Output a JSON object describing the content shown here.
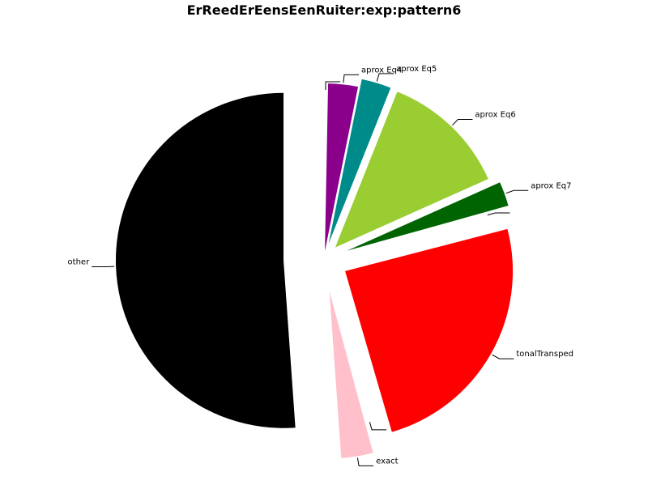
{
  "chart_data": {
    "type": "pie",
    "title": "ErReedErEensEenRuiter:exp:pattern6",
    "slices": [
      {
        "label": "other",
        "value": 50.0,
        "color": "#000000"
      },
      {
        "label": "exact",
        "value": 3.0,
        "color": "#ffc0cb"
      },
      {
        "label": "",
        "value": 0.3,
        "color": "#ffffff"
      },
      {
        "label": "tonalTransped",
        "value": 24.0,
        "color": "#ff0000"
      },
      {
        "label": "",
        "value": 0.3,
        "color": "#ffffff"
      },
      {
        "label": "aprox Eq7",
        "value": 2.3,
        "color": "#006400"
      },
      {
        "label": "aprox Eq6",
        "value": 12.0,
        "color": "#9acd32"
      },
      {
        "label": "aprox Eq5",
        "value": 2.8,
        "color": "#008b8b"
      },
      {
        "label": "aprox Eq4",
        "value": 2.8,
        "color": "#8b008b"
      },
      {
        "label": "",
        "value": 0.3,
        "color": "#ffffff"
      }
    ]
  }
}
